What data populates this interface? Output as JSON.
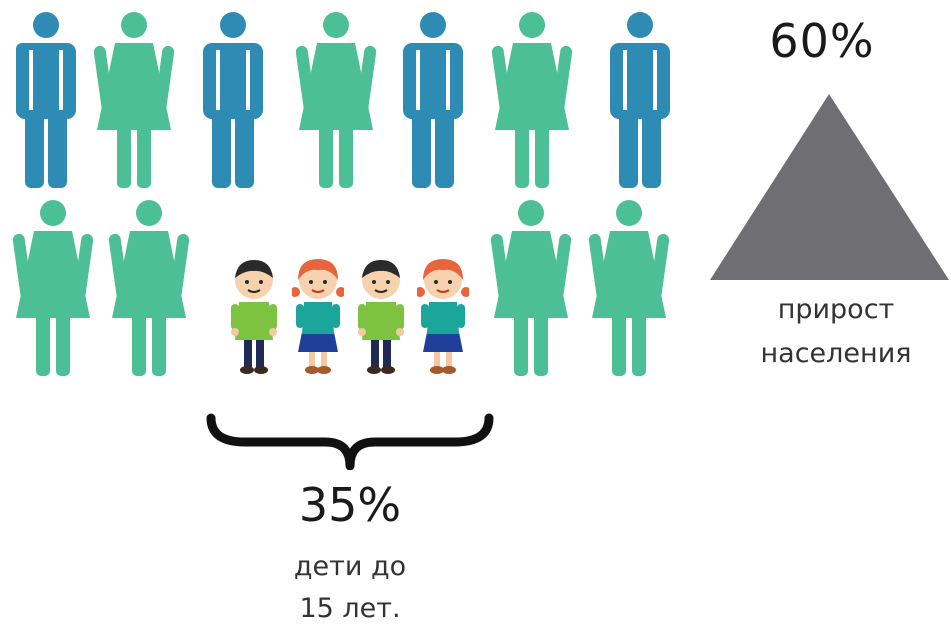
{
  "colors": {
    "man": "#2e8bb3",
    "woman": "#4dbf96",
    "triangle": "#6f6f73",
    "boy_shirt": "#7ec242",
    "girl_shirt": "#1aa69a",
    "girl_hair": "#e8643a",
    "boy_hair": "#2b2b2b"
  },
  "icons": {
    "row1": [
      "man-icon",
      "woman-icon",
      "man-icon",
      "woman-icon",
      "man-icon",
      "woman-icon",
      "man-icon"
    ],
    "row2": [
      "woman-icon",
      "woman-icon",
      "boy-icon",
      "girl-icon",
      "boy-icon",
      "girl-icon",
      "woman-icon",
      "woman-icon"
    ]
  },
  "growth": {
    "value": "60%",
    "label_line1": "прирост",
    "label_line2": "населения"
  },
  "children": {
    "value": "35%",
    "label_line1": "дети до",
    "label_line2": "15 лет."
  }
}
